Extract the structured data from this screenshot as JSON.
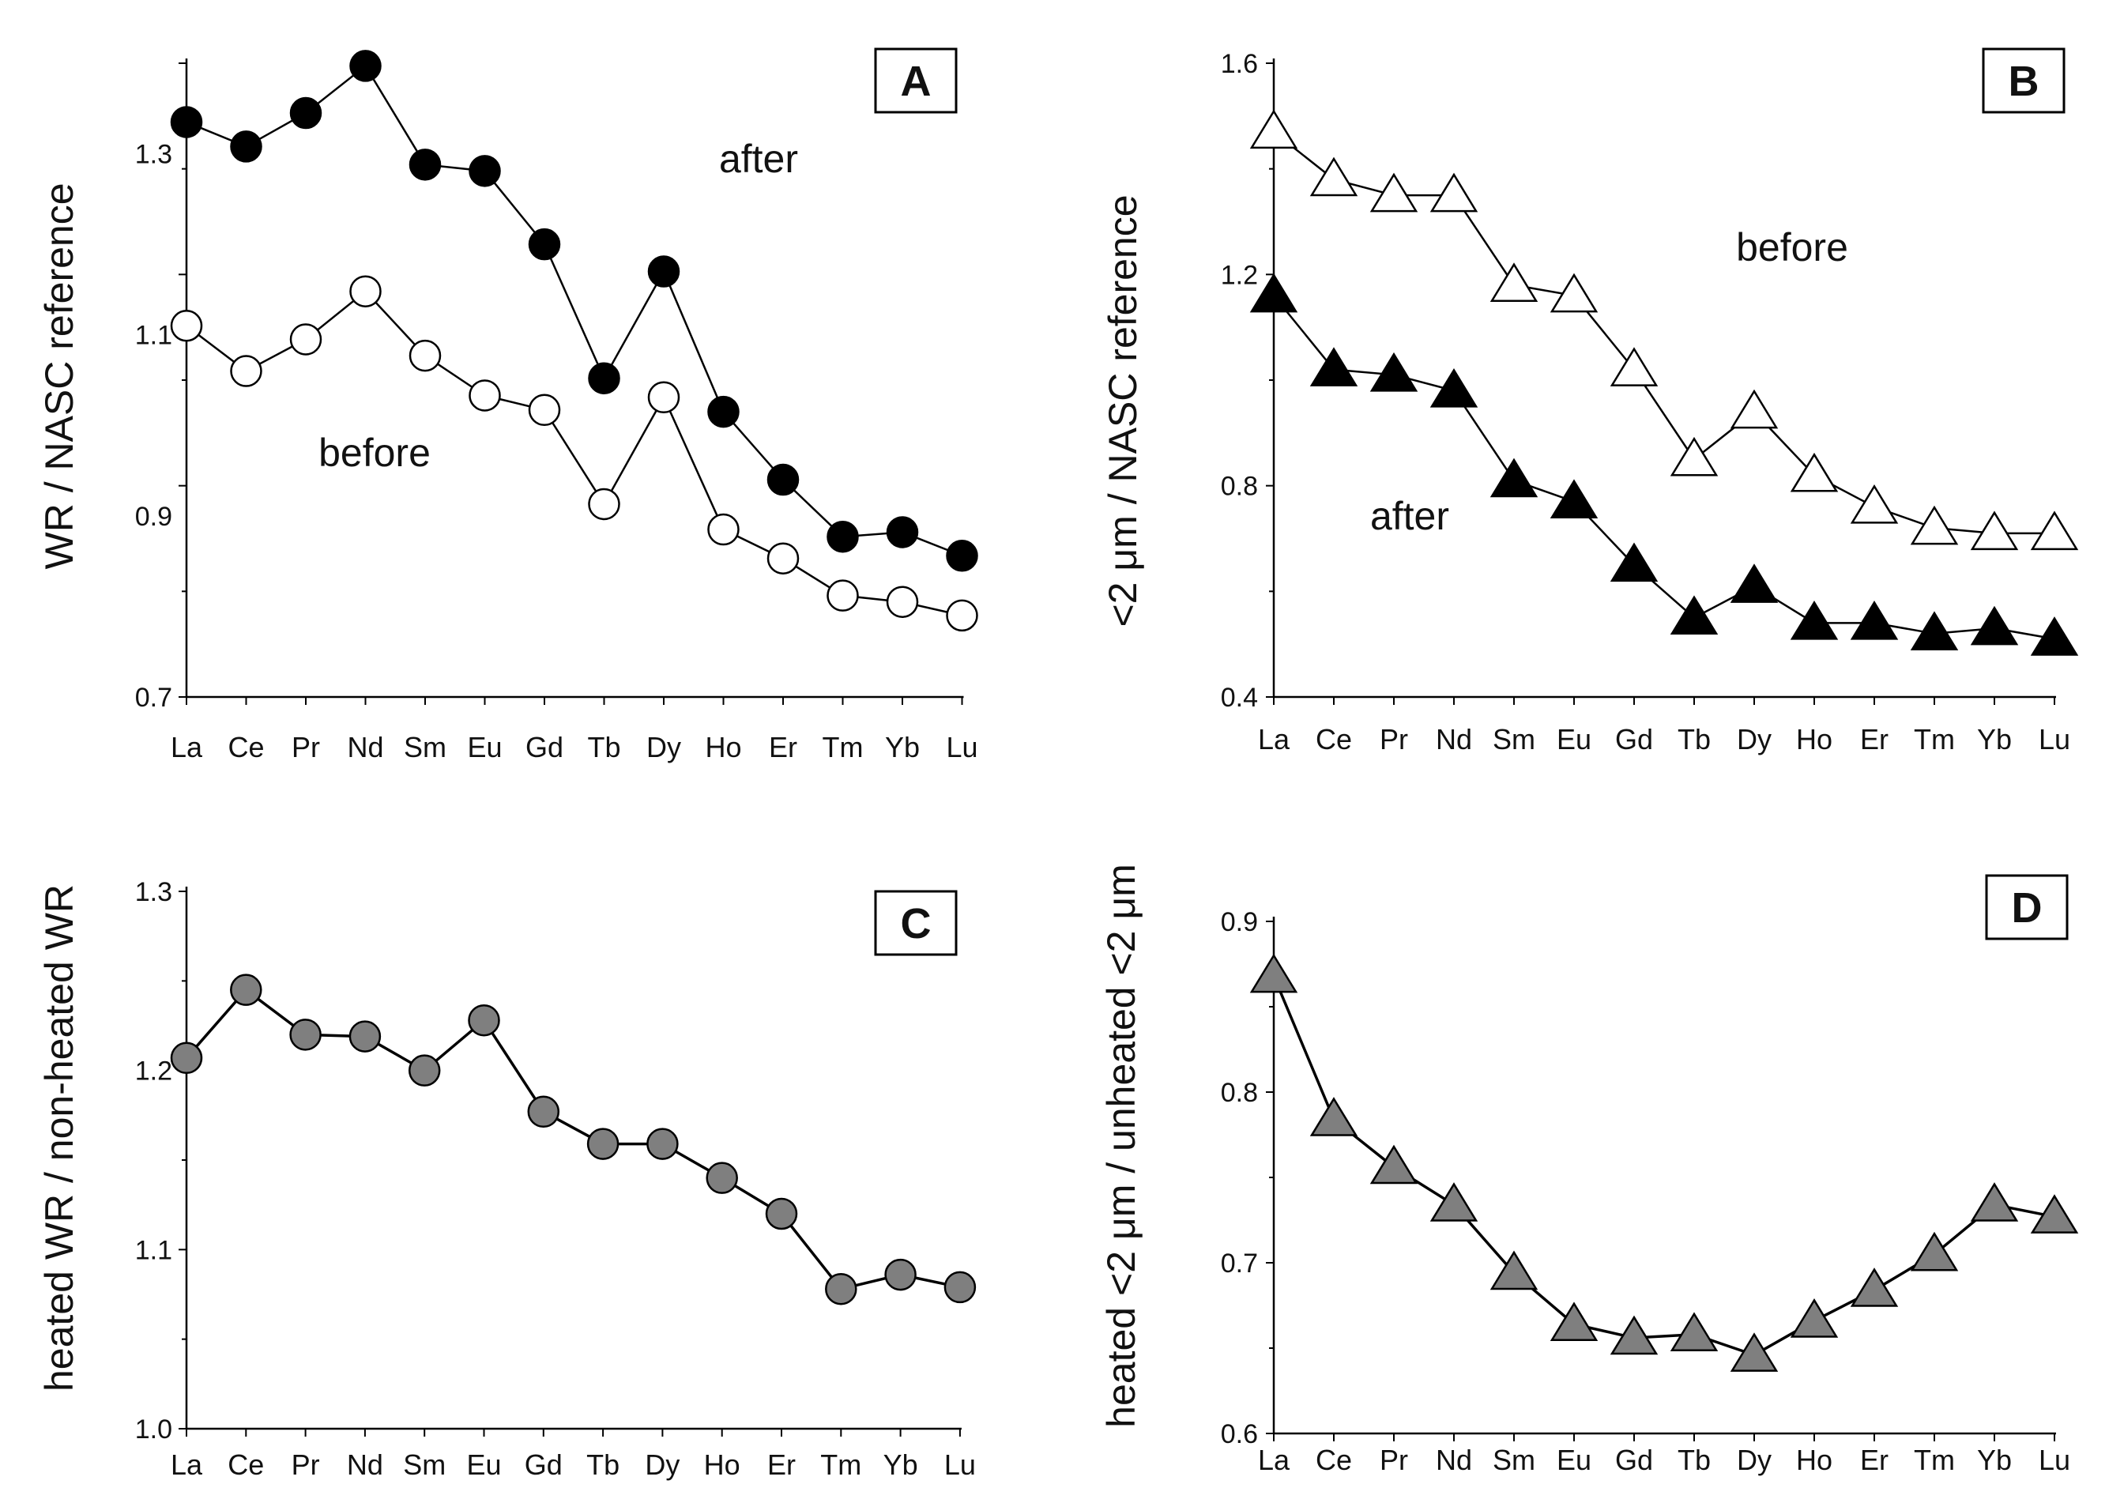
{
  "chart_data": [
    {
      "type": "line",
      "panel_label": "A",
      "ylabel": "WR / NASC reference",
      "categories": [
        "La",
        "Ce",
        "Pr",
        "Nd",
        "Sm",
        "Eu",
        "Gd",
        "Tb",
        "Dy",
        "Ho",
        "Er",
        "Tm",
        "Yb",
        "Lu"
      ],
      "ylim": [
        0.7,
        1.4
      ],
      "yticks": [
        "0.7",
        "0.9",
        "1.1",
        "1.3"
      ],
      "series": [
        {
          "name": "after",
          "marker": "filled-circle",
          "values": [
            1.335,
            1.308,
            1.345,
            1.397,
            1.288,
            1.281,
            1.2,
            1.052,
            1.17,
            1.015,
            0.94,
            0.877,
            0.882,
            0.856
          ]
        },
        {
          "name": "before",
          "marker": "open-circle",
          "values": [
            1.11,
            1.06,
            1.095,
            1.148,
            1.077,
            1.033,
            1.017,
            0.913,
            1.031,
            0.885,
            0.853,
            0.812,
            0.805,
            0.79
          ]
        }
      ],
      "annotations": [
        {
          "text": "after",
          "series": "after"
        },
        {
          "text": "before",
          "series": "before"
        }
      ]
    },
    {
      "type": "line",
      "panel_label": "B",
      "ylabel": "<2 μm / NASC reference",
      "categories": [
        "La",
        "Ce",
        "Pr",
        "Nd",
        "Sm",
        "Eu",
        "Gd",
        "Tb",
        "Dy",
        "Ho",
        "Er",
        "Tm",
        "Yb",
        "Lu"
      ],
      "ylim": [
        0.4,
        1.6
      ],
      "yticks": [
        "0.4",
        "0.8",
        "1.2",
        "1.6"
      ],
      "series": [
        {
          "name": "before",
          "marker": "open-triangle",
          "values": [
            1.47,
            1.38,
            1.35,
            1.35,
            1.18,
            1.16,
            1.02,
            0.85,
            0.94,
            0.82,
            0.76,
            0.72,
            0.71,
            0.71
          ]
        },
        {
          "name": "after",
          "marker": "filled-triangle",
          "values": [
            1.16,
            1.02,
            1.01,
            0.98,
            0.81,
            0.77,
            0.65,
            0.55,
            0.61,
            0.54,
            0.54,
            0.52,
            0.53,
            0.51
          ]
        }
      ],
      "annotations": [
        {
          "text": "before",
          "series": "before"
        },
        {
          "text": "after",
          "series": "after"
        }
      ]
    },
    {
      "type": "line",
      "panel_label": "C",
      "ylabel": "heated  WR / non-heated  WR",
      "categories": [
        "La",
        "Ce",
        "Pr",
        "Nd",
        "Sm",
        "Eu",
        "Gd",
        "Tb",
        "Dy",
        "Ho",
        "Er",
        "Tm",
        "Yb",
        "Lu"
      ],
      "ylim": [
        1.0,
        1.3
      ],
      "yticks": [
        "1.0",
        "1.1",
        "1.2",
        "1.3"
      ],
      "series": [
        {
          "name": "heated/non-heated",
          "marker": "gray-circle",
          "values": [
            1.207,
            1.245,
            1.22,
            1.219,
            1.2,
            1.228,
            1.177,
            1.159,
            1.159,
            1.14,
            1.12,
            1.078,
            1.086,
            1.079
          ]
        }
      ],
      "annotations": []
    },
    {
      "type": "line",
      "panel_label": "D",
      "ylabel": "heated  <2 μm / unheated  <2 μm",
      "categories": [
        "La",
        "Ce",
        "Pr",
        "Nd",
        "Sm",
        "Eu",
        "Gd",
        "Tb",
        "Dy",
        "Ho",
        "Er",
        "Tm",
        "Yb",
        "Lu"
      ],
      "ylim": [
        0.6,
        0.9
      ],
      "yticks": [
        "0.6",
        "0.7",
        "0.8",
        "0.9"
      ],
      "series": [
        {
          "name": "heated/unheated",
          "marker": "gray-triangle",
          "values": [
            0.868,
            0.784,
            0.756,
            0.734,
            0.694,
            0.664,
            0.656,
            0.658,
            0.646,
            0.666,
            0.684,
            0.705,
            0.734,
            0.727
          ]
        }
      ],
      "annotations": []
    }
  ]
}
